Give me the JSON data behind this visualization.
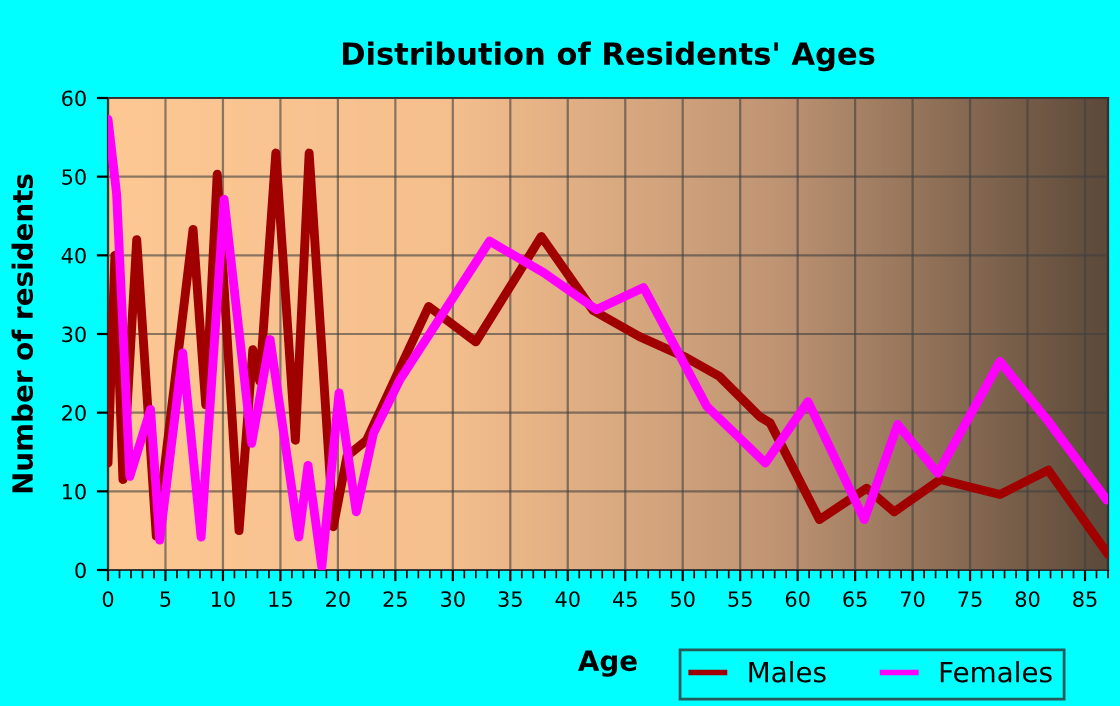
{
  "chart_data": {
    "type": "line",
    "title": "Distribution of Residents' Ages",
    "xlabel": "Age",
    "ylabel": "Number of residents",
    "xlim": [
      0,
      87
    ],
    "xticks": [
      0,
      5,
      10,
      15,
      20,
      25,
      30,
      35,
      40,
      45,
      50,
      55,
      60,
      65,
      70,
      75,
      80,
      85
    ],
    "ylim": [
      0,
      60
    ],
    "yticks": [
      0,
      10,
      20,
      30,
      40,
      50,
      60
    ],
    "grid": true,
    "legend": "bottom right",
    "marker": "none",
    "line_style": "solid",
    "series": [
      {
        "name": "Males",
        "color": "#a00000",
        "x": [
          0,
          0.6,
          1.3,
          2.5,
          4.2,
          7.4,
          8.5,
          9.5,
          11.4,
          12.6,
          13.2,
          14.6,
          16.3,
          17.5,
          19.6,
          20.8,
          22.5,
          27.9,
          32,
          37.7,
          42.2,
          46.2,
          50.3,
          53.2,
          56.7,
          57.6,
          61.9,
          66,
          68.4,
          72.4,
          77.6,
          81.8,
          87
        ],
        "values": [
          13.6,
          40,
          11.5,
          42,
          4.3,
          43.3,
          21,
          50.3,
          5,
          28,
          24,
          53,
          16.5,
          53,
          5.5,
          14.5,
          16.5,
          33.5,
          29,
          42.4,
          33,
          29.7,
          27,
          24.6,
          19.5,
          18.7,
          6.4,
          10.4,
          7.4,
          11.5,
          9.6,
          12.7,
          2
        ]
      },
      {
        "name": "Females",
        "color": "#ff00ff",
        "x": [
          0,
          0.75,
          1.9,
          3.7,
          4.5,
          6.5,
          8.1,
          10.1,
          12.5,
          14.1,
          16.6,
          17.4,
          18.6,
          20.1,
          21.6,
          23.1,
          25.4,
          33.2,
          37.9,
          42.5,
          46.6,
          52.1,
          57.2,
          60.9,
          65.8,
          68.7,
          72.2,
          77.6,
          81.7,
          86.9
        ],
        "values": [
          57.3,
          47.8,
          11.9,
          20.4,
          3.8,
          27.6,
          4.2,
          47.1,
          16.1,
          29.3,
          4.2,
          13.3,
          0.4,
          22.5,
          7.4,
          17.4,
          24.2,
          41.8,
          37.8,
          33.1,
          35.9,
          20.8,
          13.6,
          21.4,
          6.4,
          18.5,
          12.3,
          26.5,
          19.1,
          8.9
        ]
      }
    ]
  }
}
